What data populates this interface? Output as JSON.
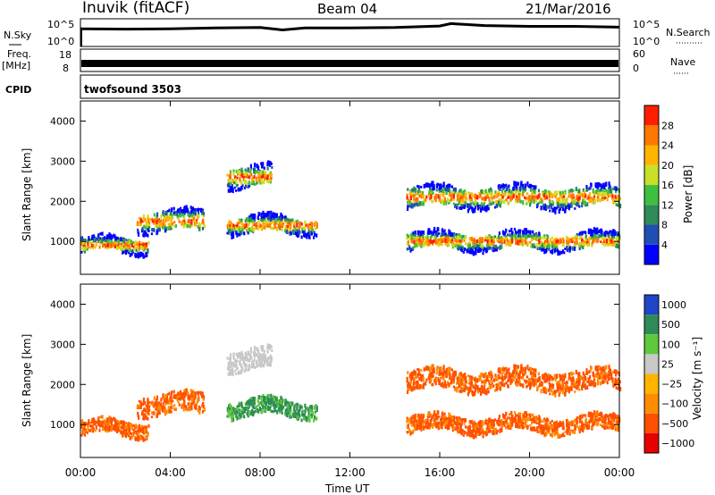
{
  "header": {
    "station": "Inuvik (fitACF)",
    "beam": "Beam 04",
    "date": "21/Mar/2016"
  },
  "chart_data": [
    {
      "type": "line",
      "panel": "nsky-nsearch",
      "left_label": "N.Sky",
      "right_label": "N.Search",
      "left_ticks": [
        "10^5",
        "10^0"
      ],
      "right_ticks": [
        "10^5",
        "10^0"
      ],
      "x_hours": [
        0,
        2,
        4,
        6,
        8,
        9,
        10,
        12,
        14,
        16,
        16.5,
        18,
        20,
        22,
        24
      ],
      "values_log10": [
        3.6,
        3.5,
        3.6,
        3.8,
        3.9,
        3.3,
        3.8,
        3.8,
        3.9,
        4.3,
        4.9,
        4.4,
        4.2,
        4.2,
        4.0
      ]
    },
    {
      "type": "line",
      "panel": "freq-nave",
      "left_label": "Freq.",
      "left_unit": "[MHz]",
      "left_ticks": [
        "18",
        "8"
      ],
      "right_label": "Nave",
      "right_ticks": [
        "60",
        "0"
      ],
      "cpid_label": "CPID",
      "cpid_value": "twofsound 3503"
    },
    {
      "type": "heatmap",
      "panel": "power",
      "ylabel": "Slant Range [km]",
      "y_ticks": [
        "1000",
        "2000",
        "3000",
        "4000"
      ],
      "colorbar_label": "Power [dB]",
      "colorbar_ticks": [
        "4",
        "8",
        "12",
        "16",
        "20",
        "24",
        "28"
      ],
      "colorbar_colors": [
        "#0000ff",
        "#1f4fb4",
        "#2e8b57",
        "#3fbf3f",
        "#c8e028",
        "#ffb400",
        "#ff7800",
        "#ff1e00"
      ],
      "echo_bands_km": [
        {
          "start_h": 0.0,
          "end_h": 3.0,
          "center_km": 900,
          "width_km": 350
        },
        {
          "start_h": 2.5,
          "end_h": 5.5,
          "center_km": 1500,
          "width_km": 500
        },
        {
          "start_h": 6.5,
          "end_h": 8.5,
          "center_km": 2600,
          "width_km": 500
        },
        {
          "start_h": 6.5,
          "end_h": 10.5,
          "center_km": 1400,
          "width_km": 400
        },
        {
          "start_h": 14.5,
          "end_h": 24.0,
          "center_km": 1000,
          "width_km": 400
        },
        {
          "start_h": 14.5,
          "end_h": 24.0,
          "center_km": 2100,
          "width_km": 500
        }
      ]
    },
    {
      "type": "heatmap",
      "panel": "velocity",
      "ylabel": "Slant Range [km]",
      "y_ticks": [
        "1000",
        "2000",
        "3000",
        "4000"
      ],
      "colorbar_label": "Velocity [m s⁻¹]",
      "colorbar_ticks": [
        "1000",
        "500",
        "100",
        "25",
        "−25",
        "−100",
        "−500",
        "−1000"
      ],
      "colorbar_colors": [
        "#1e46c8",
        "#2e8b57",
        "#5fc83c",
        "#c8c8c8",
        "#ffb400",
        "#ff8c00",
        "#ff5000",
        "#e60000"
      ],
      "xlabel": "Time UT",
      "x_ticks": [
        "00:00",
        "04:00",
        "08:00",
        "12:00",
        "16:00",
        "20:00",
        "00:00"
      ]
    }
  ]
}
